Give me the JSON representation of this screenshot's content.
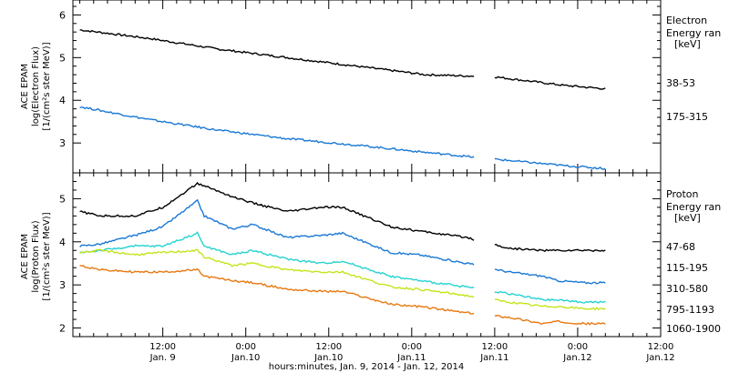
{
  "chart_data": [
    {
      "panel": "electron",
      "type": "line",
      "ylabel_lines": [
        "ACE EPAM",
        "log(Electron Flux)",
        "[1/(cm²s ster MeV)]"
      ],
      "ylim": [
        2.3,
        6.35
      ],
      "yticks": [
        3,
        4,
        5,
        6
      ],
      "legend_title_lines": [
        "Electron",
        "Energy ran",
        "[keV]"
      ],
      "x": [
        0,
        10,
        20,
        30,
        40,
        50,
        60,
        70,
        76
      ],
      "series": [
        {
          "name": "38-53",
          "color": "#000000",
          "values": [
            5.65,
            5.45,
            5.2,
            5.0,
            4.8,
            4.6,
            4.55,
            4.35,
            4.27
          ]
        },
        {
          "name": "175-315",
          "color": "#1a78d4",
          "values": [
            3.85,
            3.55,
            3.3,
            3.1,
            2.95,
            2.78,
            2.62,
            2.47,
            2.4
          ]
        }
      ]
    },
    {
      "panel": "proton",
      "type": "line",
      "ylabel_lines": [
        "ACE EPAM",
        "log(Proton Flux)",
        "[1/(cm²s ster MeV)]"
      ],
      "ylim": [
        1.8,
        5.6
      ],
      "yticks": [
        2,
        3,
        4,
        5
      ],
      "legend_title_lines": [
        "Proton",
        "Energy ran",
        "[keV]"
      ],
      "x": [
        0,
        3,
        8,
        12,
        17,
        18,
        22,
        25,
        30,
        35,
        38,
        45,
        49,
        56,
        62,
        67,
        69,
        73,
        76
      ],
      "series": [
        {
          "name": "47-68",
          "color": "#000000",
          "values": [
            4.7,
            4.6,
            4.6,
            4.8,
            5.35,
            5.3,
            5.05,
            4.9,
            4.7,
            4.8,
            4.8,
            4.35,
            4.25,
            4.1,
            3.85,
            3.8,
            3.8,
            3.8,
            3.8
          ]
        },
        {
          "name": "115-195",
          "color": "#1a78d4",
          "values": [
            3.9,
            3.95,
            4.15,
            4.35,
            4.95,
            4.6,
            4.3,
            4.4,
            4.1,
            4.15,
            4.2,
            3.75,
            3.7,
            3.5,
            3.3,
            3.2,
            3.1,
            3.05,
            3.05
          ]
        },
        {
          "name": "310-580",
          "color": "#25d3cf",
          "values": [
            3.75,
            3.8,
            3.9,
            3.9,
            4.2,
            3.9,
            3.7,
            3.8,
            3.6,
            3.5,
            3.55,
            3.2,
            3.1,
            2.95,
            2.8,
            2.65,
            2.65,
            2.6,
            2.6
          ]
        },
        {
          "name": "795-1193",
          "color": "#c4e41a",
          "values": [
            3.75,
            3.8,
            3.7,
            3.75,
            3.8,
            3.65,
            3.45,
            3.5,
            3.35,
            3.3,
            3.3,
            2.95,
            2.9,
            2.75,
            2.6,
            2.5,
            2.5,
            2.45,
            2.45
          ]
        },
        {
          "name": "1060-1900",
          "color": "#e8780f",
          "values": [
            3.45,
            3.35,
            3.3,
            3.3,
            3.35,
            3.2,
            3.1,
            3.05,
            2.9,
            2.85,
            2.85,
            2.55,
            2.5,
            2.35,
            2.25,
            2.1,
            2.15,
            2.1,
            2.1
          ]
        }
      ]
    }
  ],
  "x_axis": {
    "xlim": [
      -1,
      84
    ],
    "tick_hours": [
      12,
      24,
      36,
      48,
      60,
      72,
      84
    ],
    "tick_time_labels": [
      "12:00",
      "0:00",
      "12:00",
      "0:00",
      "12:00",
      "0:00",
      "12:00"
    ],
    "tick_date_labels": [
      "Jan. 9",
      "Jan.10",
      "Jan.10",
      "Jan.11",
      "Jan.11",
      "Jan.12",
      "Jan.12"
    ],
    "label": "hours:minutes, Jan.  9, 2014 - Jan. 12, 2014",
    "data_gap_hours": [
      57,
      60
    ]
  }
}
